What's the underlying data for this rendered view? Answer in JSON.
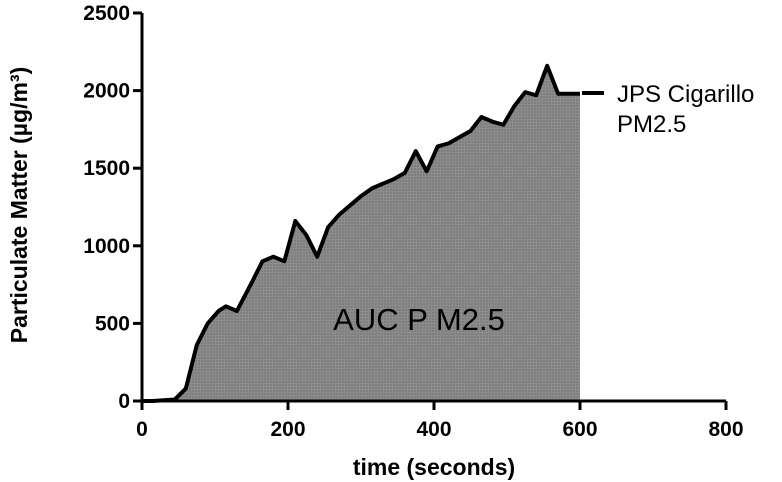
{
  "chart_data": {
    "type": "area",
    "xlabel": "time (seconds)",
    "ylabel": "Particulate Matter (µg/m³)",
    "xlim": [
      0,
      800
    ],
    "ylim": [
      0,
      2500
    ],
    "xticks": [
      0,
      200,
      400,
      600,
      800
    ],
    "yticks": [
      0,
      500,
      1000,
      1500,
      2000,
      2500
    ],
    "xtick_labels": [
      "0",
      "200",
      "400",
      "600",
      "800"
    ],
    "ytick_labels": [
      "0",
      "500",
      "1000",
      "1500",
      "2000",
      "2500"
    ],
    "grid": false,
    "legend": {
      "position": "right",
      "label_line1": "JPS Cigarillo",
      "label_line2": "PM2.5"
    },
    "annotation": "AUC P M2.5",
    "fill_color": "#8c8c8c",
    "line_color": "#000000",
    "series": [
      {
        "name": "JPS Cigarillo PM2.5",
        "x": [
          0,
          15,
          30,
          45,
          60,
          75,
          90,
          105,
          115,
          130,
          150,
          165,
          180,
          195,
          210,
          225,
          240,
          255,
          270,
          285,
          300,
          315,
          330,
          345,
          360,
          375,
          390,
          405,
          420,
          435,
          450,
          465,
          480,
          495,
          510,
          525,
          540,
          555,
          570,
          585,
          600
        ],
        "values": [
          0,
          0,
          5,
          10,
          80,
          360,
          500,
          580,
          610,
          580,
          760,
          900,
          930,
          900,
          1160,
          1070,
          930,
          1120,
          1200,
          1260,
          1320,
          1370,
          1400,
          1430,
          1470,
          1610,
          1480,
          1640,
          1660,
          1700,
          1740,
          1830,
          1800,
          1780,
          1900,
          1990,
          1970,
          2160,
          1980,
          1980,
          1980
        ]
      }
    ]
  }
}
